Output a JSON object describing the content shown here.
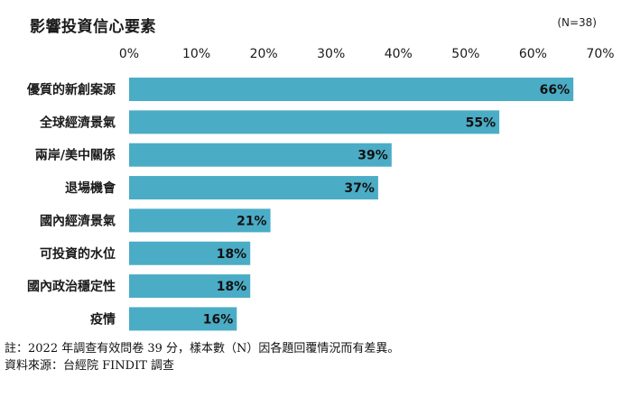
{
  "title": "影響投資信心要素",
  "sample_size": "(N=38)",
  "notes": [
    "註：2022 年調查有效問卷 39 分，樣本數（N）因各題回覆情況而有差異。",
    "資料來源：台經院 FINDIT 調查"
  ],
  "bar_color": "#4bacc6",
  "chart_data": {
    "type": "bar",
    "orientation": "horizontal",
    "title": "影響投資信心要素",
    "categories": [
      "優質的新創案源",
      "全球經濟景氣",
      "兩岸/美中關係",
      "退場機會",
      "國內經濟景氣",
      "可投資的水位",
      "國內政治穩定性",
      "疫情"
    ],
    "values": [
      66,
      55,
      39,
      37,
      21,
      18,
      18,
      16
    ],
    "value_labels": [
      "66%",
      "55%",
      "39%",
      "37%",
      "21%",
      "18%",
      "18%",
      "16%"
    ],
    "xticks": [
      "0%",
      "10%",
      "20%",
      "30%",
      "40%",
      "50%",
      "60%",
      "70%"
    ],
    "xlim": [
      0,
      70
    ],
    "axis_position": "top",
    "grid": false,
    "legend": "none"
  }
}
